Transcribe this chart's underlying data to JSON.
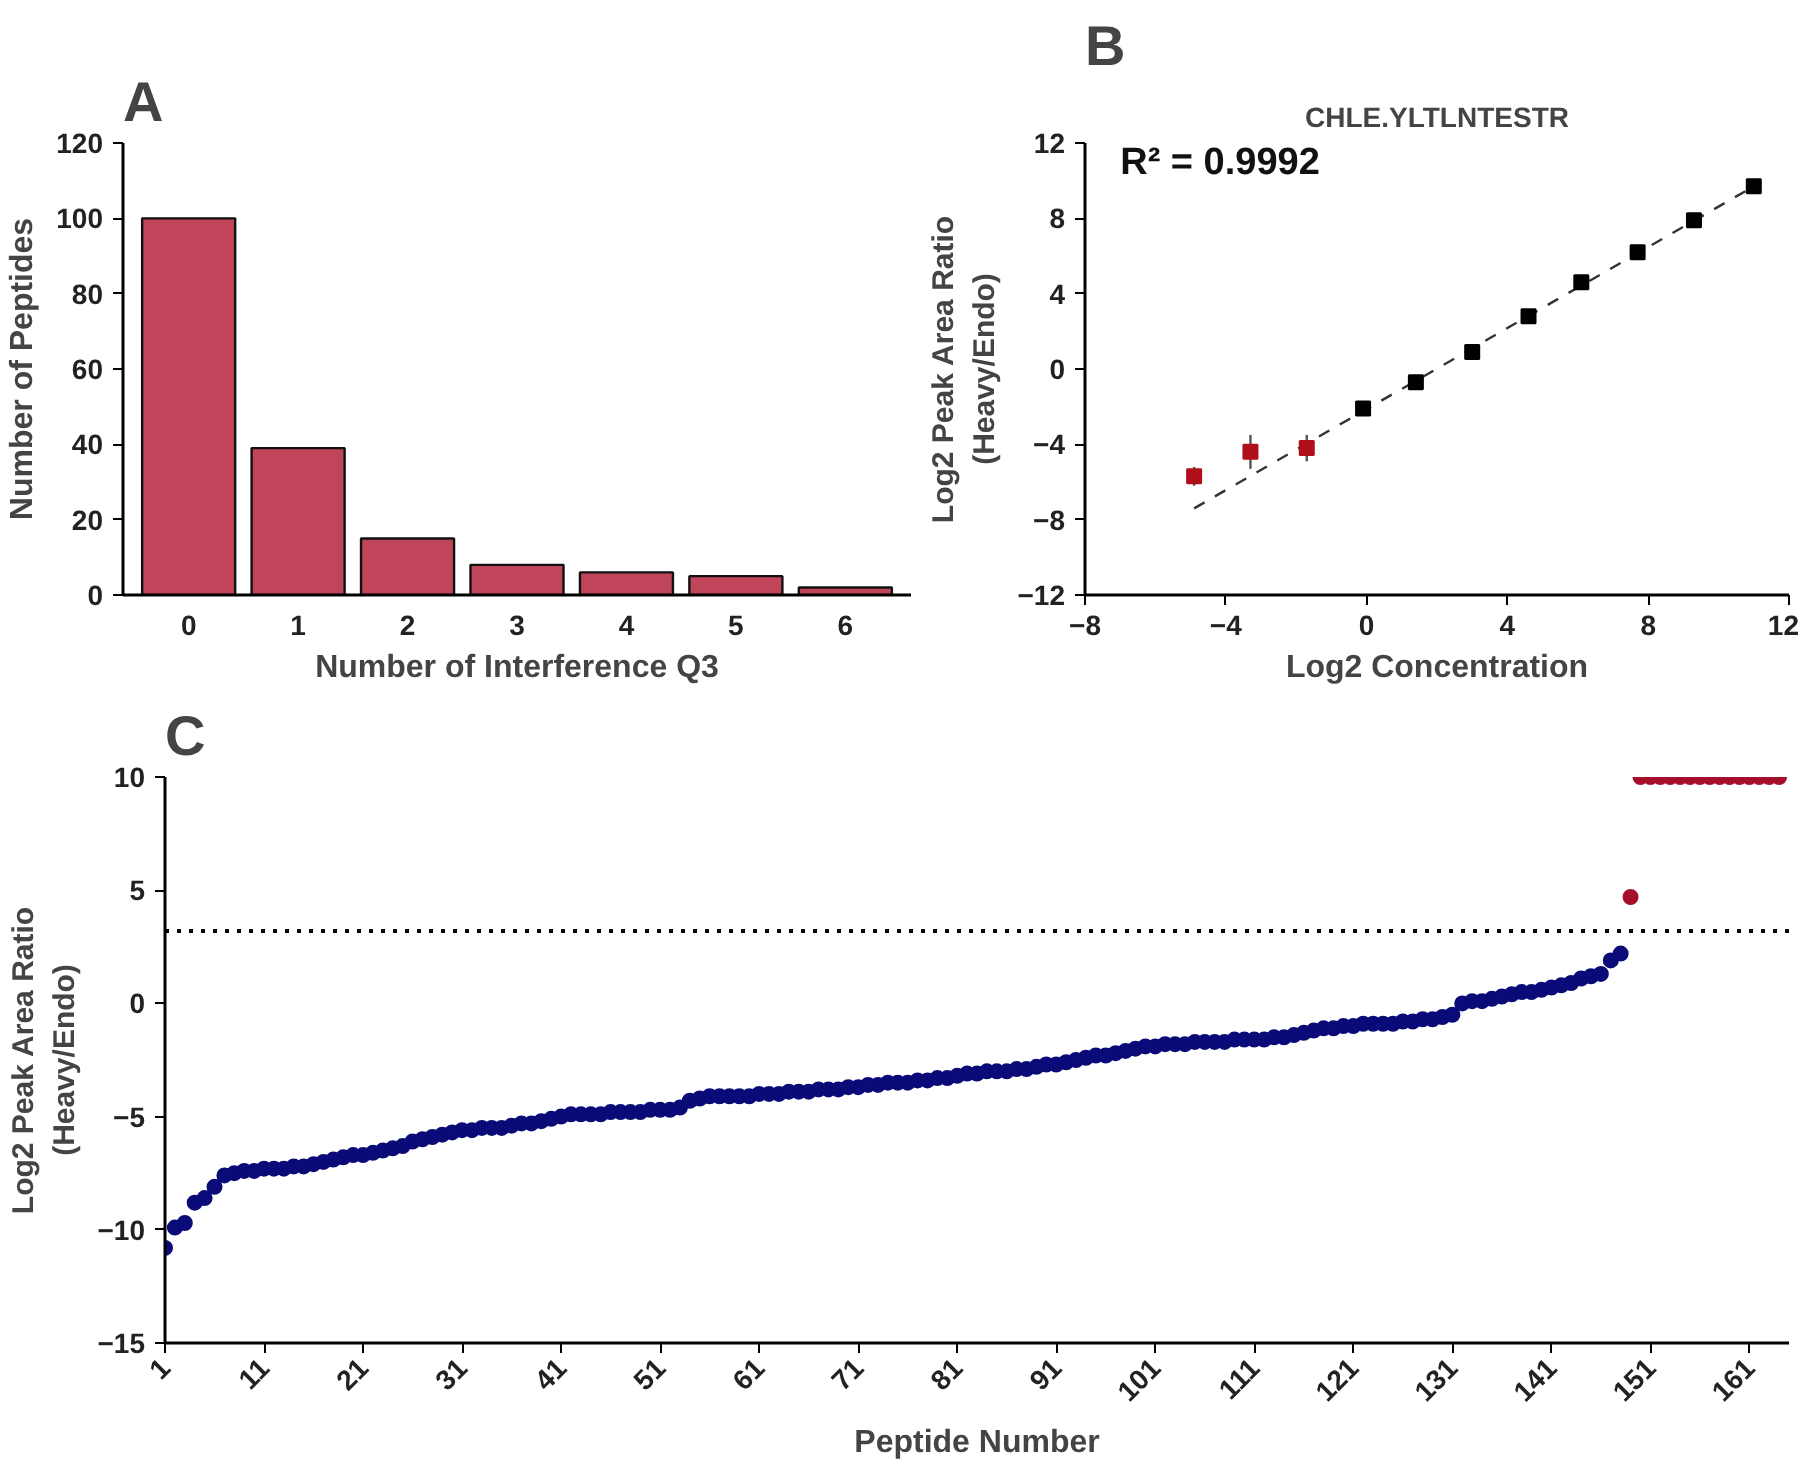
{
  "chart_data": [
    {
      "type": "bar",
      "xlabel": "Number of Interference Q3",
      "ylabel": "Number of Peptides",
      "annotations": [
        "A"
      ],
      "categories": [
        "0",
        "1",
        "2",
        "3",
        "4",
        "5",
        "6"
      ],
      "values": [
        100,
        39,
        15,
        8,
        6,
        5,
        2
      ],
      "color": "#c0455a",
      "ylim": [
        0,
        120
      ],
      "yticks": [
        0,
        20,
        40,
        60,
        80,
        100,
        120
      ],
      "grid": false
    },
    {
      "type": "scatter",
      "title": "CHLE.YLTLNTESTR",
      "xlabel": "Log2 Concentration",
      "ylabel": "Log2 Peak Area Ratio\n(Heavy/Endo)",
      "annotations": [
        "B",
        "R² = 0.9992"
      ],
      "marker": "square",
      "xlim": [
        -8,
        12
      ],
      "xticks": [
        -8,
        -4,
        0,
        4,
        8,
        12
      ],
      "ylim": [
        -12,
        12
      ],
      "yticks": [
        -12,
        -8,
        -4,
        0,
        4,
        8,
        12
      ],
      "grid": false,
      "series": [
        {
          "type": "line",
          "line_style": "dashed",
          "marker": "none",
          "color": "#333333",
          "x": [
            -4.9,
            11.0
          ],
          "values": [
            -7.4,
            9.7
          ]
        },
        {
          "color": "#b00f1a",
          "x": [
            -4.9,
            -3.3,
            -1.7
          ],
          "values": [
            -5.7,
            -4.4,
            -4.2
          ],
          "errors": [
            0.5,
            0.9,
            0.7
          ]
        },
        {
          "color": "#000000",
          "x": [
            -0.1,
            1.4,
            3.0,
            4.6,
            6.1,
            7.7,
            9.3,
            11.0
          ],
          "values": [
            -2.1,
            -0.7,
            0.9,
            2.8,
            4.6,
            6.2,
            7.9,
            9.7
          ]
        }
      ]
    },
    {
      "type": "scatter",
      "xlabel": "Peptide Number",
      "ylabel": "Log2 Peak Area Ratio\n(Heavy/Endo)",
      "annotations": [
        "C"
      ],
      "marker": "circle",
      "xlim": [
        1,
        165
      ],
      "xticks": [
        1,
        11,
        21,
        31,
        41,
        51,
        61,
        71,
        81,
        91,
        101,
        111,
        121,
        131,
        141,
        151,
        161
      ],
      "ylim": [
        -15,
        10
      ],
      "yticks": [
        -15,
        -10,
        -5,
        0,
        5,
        10
      ],
      "grid": false,
      "ref_lines": [
        {
          "axis": "y",
          "value": 3.2,
          "line_style": "dotted",
          "color": "#000000"
        }
      ],
      "series": [
        {
          "color": "#0a0a78",
          "x": [
            1,
            2,
            3,
            4,
            5,
            6,
            7,
            8,
            9,
            10,
            11,
            12,
            13,
            14,
            15,
            16,
            17,
            18,
            19,
            20,
            21,
            22,
            23,
            24,
            25,
            26,
            27,
            28,
            29,
            30,
            31,
            32,
            33,
            34,
            35,
            36,
            37,
            38,
            39,
            40,
            41,
            42,
            43,
            44,
            45,
            46,
            47,
            48,
            49,
            50,
            51,
            52,
            53,
            54,
            55,
            56,
            57,
            58,
            59,
            60,
            61,
            62,
            63,
            64,
            65,
            66,
            67,
            68,
            69,
            70,
            71,
            72,
            73,
            74,
            75,
            76,
            77,
            78,
            79,
            80,
            81,
            82,
            83,
            84,
            85,
            86,
            87,
            88,
            89,
            90,
            91,
            92,
            93,
            94,
            95,
            96,
            97,
            98,
            99,
            100,
            101,
            102,
            103,
            104,
            105,
            106,
            107,
            108,
            109,
            110,
            111,
            112,
            113,
            114,
            115,
            116,
            117,
            118,
            119,
            120,
            121,
            122,
            123,
            124,
            125,
            126,
            127,
            128,
            129,
            130,
            131,
            132,
            133,
            134,
            135,
            136,
            137,
            138,
            139,
            140,
            141,
            142,
            143,
            144,
            145,
            146,
            147,
            148
          ],
          "values": [
            -10.8,
            -9.9,
            -9.7,
            -8.8,
            -8.6,
            -8.1,
            -7.6,
            -7.5,
            -7.4,
            -7.4,
            -7.3,
            -7.3,
            -7.3,
            -7.2,
            -7.2,
            -7.1,
            -7.0,
            -6.9,
            -6.8,
            -6.7,
            -6.7,
            -6.6,
            -6.5,
            -6.4,
            -6.3,
            -6.1,
            -6.0,
            -5.9,
            -5.8,
            -5.7,
            -5.6,
            -5.6,
            -5.5,
            -5.5,
            -5.5,
            -5.4,
            -5.3,
            -5.3,
            -5.2,
            -5.1,
            -5.0,
            -4.9,
            -4.9,
            -4.9,
            -4.9,
            -4.8,
            -4.8,
            -4.8,
            -4.8,
            -4.7,
            -4.7,
            -4.7,
            -4.6,
            -4.3,
            -4.2,
            -4.1,
            -4.1,
            -4.1,
            -4.1,
            -4.1,
            -4.0,
            -4.0,
            -4.0,
            -3.9,
            -3.9,
            -3.9,
            -3.8,
            -3.8,
            -3.8,
            -3.7,
            -3.7,
            -3.6,
            -3.6,
            -3.5,
            -3.5,
            -3.5,
            -3.4,
            -3.4,
            -3.3,
            -3.3,
            -3.2,
            -3.1,
            -3.1,
            -3.0,
            -3.0,
            -3.0,
            -2.9,
            -2.9,
            -2.8,
            -2.7,
            -2.7,
            -2.6,
            -2.5,
            -2.4,
            -2.3,
            -2.3,
            -2.2,
            -2.1,
            -2.0,
            -1.9,
            -1.9,
            -1.8,
            -1.8,
            -1.8,
            -1.7,
            -1.7,
            -1.7,
            -1.7,
            -1.6,
            -1.6,
            -1.6,
            -1.6,
            -1.5,
            -1.5,
            -1.4,
            -1.3,
            -1.2,
            -1.1,
            -1.1,
            -1.0,
            -1.0,
            -0.9,
            -0.9,
            -0.9,
            -0.9,
            -0.8,
            -0.8,
            -0.7,
            -0.7,
            -0.6,
            -0.5,
            0.0,
            0.1,
            0.1,
            0.2,
            0.3,
            0.4,
            0.5,
            0.5,
            0.6,
            0.7,
            0.8,
            0.9,
            1.1,
            1.2,
            1.3,
            1.9,
            2.2
          ]
        },
        {
          "color": "#a50f2b",
          "x": [
            149,
            150,
            151,
            152,
            153,
            154,
            155,
            156,
            157,
            158,
            159,
            160,
            161,
            162,
            163,
            164
          ],
          "values": [
            4.7,
            10,
            10,
            10,
            10,
            10,
            10,
            10,
            10,
            10,
            10,
            10,
            10,
            10,
            10,
            10
          ]
        }
      ]
    }
  ]
}
